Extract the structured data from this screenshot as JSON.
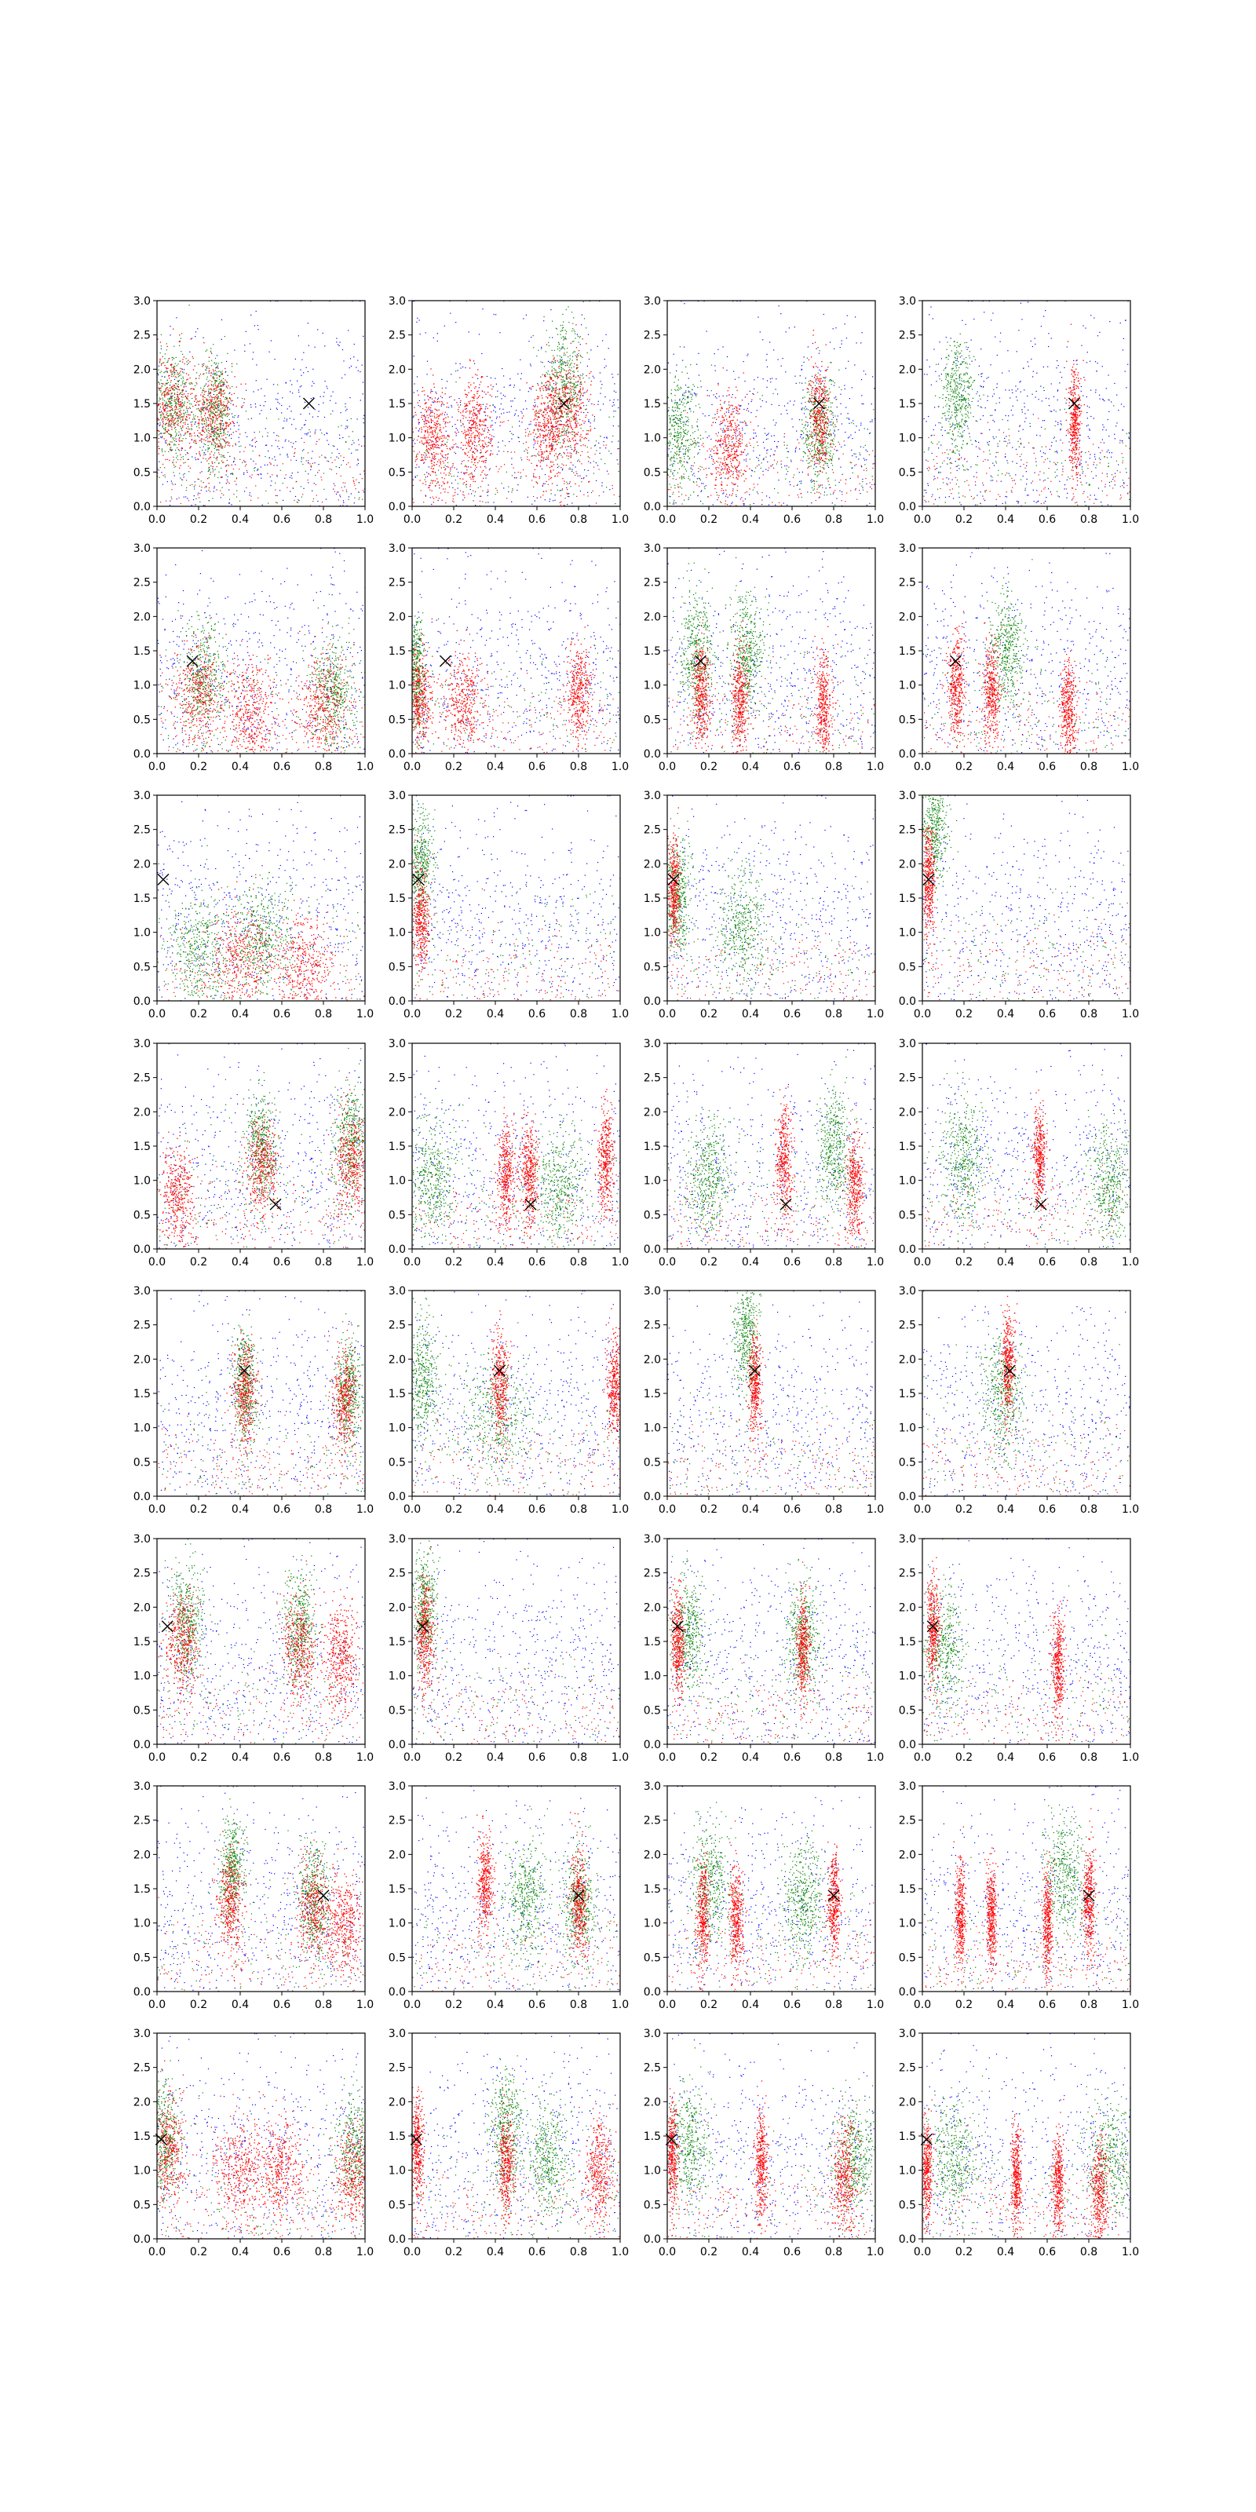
{
  "figure": {
    "grid": "8 rows x 4 columns of scatter panels"
  },
  "colors": {
    "background_points": "#0000ff",
    "red_points": "#ff0000",
    "green_points": "#008000",
    "marker": "#000000"
  },
  "chart_data": [
    {
      "type": "scatter",
      "panel": 1,
      "row": 1,
      "col": 1,
      "xlim": [
        0,
        1
      ],
      "ylim": [
        0,
        3
      ],
      "marker": {
        "x": 0.73,
        "y": 1.5
      },
      "red_clusters": [
        [
          0.07,
          1.5,
          0.06
        ],
        [
          0.28,
          1.35,
          0.05
        ]
      ],
      "green_clusters": [
        [
          0.07,
          1.5,
          0.05
        ],
        [
          0.28,
          1.4,
          0.04
        ]
      ]
    },
    {
      "type": "scatter",
      "panel": 2,
      "row": 1,
      "col": 2,
      "xlim": [
        0,
        1
      ],
      "ylim": [
        0,
        3
      ],
      "marker": {
        "x": 0.73,
        "y": 1.5
      },
      "red_clusters": [
        [
          0.1,
          1.0,
          0.04
        ],
        [
          0.3,
          1.1,
          0.04
        ],
        [
          0.65,
          1.2,
          0.04
        ],
        [
          0.75,
          1.4,
          0.05
        ]
      ],
      "green_clusters": [
        [
          0.73,
          1.8,
          0.05
        ]
      ]
    },
    {
      "type": "scatter",
      "panel": 3,
      "row": 1,
      "col": 3,
      "xlim": [
        0,
        1
      ],
      "ylim": [
        0,
        3
      ],
      "marker": {
        "x": 0.73,
        "y": 1.5
      },
      "red_clusters": [
        [
          0.73,
          1.3,
          0.025
        ],
        [
          0.3,
          0.9,
          0.04
        ]
      ],
      "green_clusters": [
        [
          0.05,
          1.1,
          0.05
        ],
        [
          0.73,
          1.1,
          0.04
        ]
      ]
    },
    {
      "type": "scatter",
      "panel": 4,
      "row": 1,
      "col": 4,
      "xlim": [
        0,
        1
      ],
      "ylim": [
        0,
        3
      ],
      "marker": {
        "x": 0.73,
        "y": 1.5
      },
      "red_clusters": [
        [
          0.73,
          1.2,
          0.015
        ]
      ],
      "green_clusters": [
        [
          0.17,
          1.6,
          0.04
        ]
      ]
    },
    {
      "type": "scatter",
      "panel": 5,
      "row": 2,
      "col": 1,
      "xlim": [
        0,
        1
      ],
      "ylim": [
        0,
        3
      ],
      "marker": {
        "x": 0.17,
        "y": 1.35
      },
      "red_clusters": [
        [
          0.2,
          0.9,
          0.06
        ],
        [
          0.8,
          0.7,
          0.06
        ],
        [
          0.45,
          0.6,
          0.06
        ]
      ],
      "green_clusters": [
        [
          0.22,
          1.1,
          0.05
        ],
        [
          0.85,
          0.9,
          0.05
        ]
      ]
    },
    {
      "type": "scatter",
      "panel": 6,
      "row": 2,
      "col": 2,
      "xlim": [
        0,
        1
      ],
      "ylim": [
        0,
        3
      ],
      "marker": {
        "x": 0.16,
        "y": 1.35
      },
      "red_clusters": [
        [
          0.03,
          0.8,
          0.03
        ],
        [
          0.25,
          0.7,
          0.05
        ],
        [
          0.8,
          0.9,
          0.03
        ]
      ],
      "green_clusters": [
        [
          0.02,
          1.2,
          0.02
        ]
      ]
    },
    {
      "type": "scatter",
      "panel": 7,
      "row": 2,
      "col": 3,
      "xlim": [
        0,
        1
      ],
      "ylim": [
        0,
        3
      ],
      "marker": {
        "x": 0.16,
        "y": 1.35
      },
      "red_clusters": [
        [
          0.16,
          0.9,
          0.02
        ],
        [
          0.35,
          0.8,
          0.02
        ],
        [
          0.75,
          0.7,
          0.02
        ]
      ],
      "green_clusters": [
        [
          0.14,
          1.5,
          0.04
        ],
        [
          0.38,
          1.5,
          0.04
        ]
      ]
    },
    {
      "type": "scatter",
      "panel": 8,
      "row": 2,
      "col": 4,
      "xlim": [
        0,
        1
      ],
      "ylim": [
        0,
        3
      ],
      "marker": {
        "x": 0.16,
        "y": 1.35
      },
      "red_clusters": [
        [
          0.16,
          1.0,
          0.02
        ],
        [
          0.33,
          0.9,
          0.02
        ],
        [
          0.7,
          0.6,
          0.02
        ]
      ],
      "green_clusters": [
        [
          0.4,
          1.5,
          0.04
        ]
      ]
    },
    {
      "type": "scatter",
      "panel": 9,
      "row": 3,
      "col": 1,
      "xlim": [
        0,
        1
      ],
      "ylim": [
        0,
        3
      ],
      "marker": {
        "x": 0.03,
        "y": 1.77
      },
      "red_clusters": [
        [
          0.4,
          0.6,
          0.07
        ],
        [
          0.7,
          0.5,
          0.07
        ]
      ],
      "green_clusters": [
        [
          0.5,
          0.9,
          0.07
        ],
        [
          0.2,
          0.7,
          0.07
        ]
      ]
    },
    {
      "type": "scatter",
      "panel": 10,
      "row": 3,
      "col": 2,
      "xlim": [
        0,
        1
      ],
      "ylim": [
        0,
        3
      ],
      "marker": {
        "x": 0.03,
        "y": 1.77
      },
      "red_clusters": [
        [
          0.04,
          1.2,
          0.02
        ]
      ],
      "green_clusters": [
        [
          0.04,
          2.0,
          0.03
        ]
      ]
    },
    {
      "type": "scatter",
      "panel": 11,
      "row": 3,
      "col": 3,
      "xlim": [
        0,
        1
      ],
      "ylim": [
        0,
        3
      ],
      "marker": {
        "x": 0.03,
        "y": 1.77
      },
      "red_clusters": [
        [
          0.03,
          1.6,
          0.015
        ]
      ],
      "green_clusters": [
        [
          0.05,
          1.5,
          0.03
        ],
        [
          0.35,
          1.1,
          0.06
        ]
      ]
    },
    {
      "type": "scatter",
      "panel": 12,
      "row": 3,
      "col": 4,
      "xlim": [
        0,
        1
      ],
      "ylim": [
        0,
        3
      ],
      "marker": {
        "x": 0.03,
        "y": 1.77
      },
      "red_clusters": [
        [
          0.03,
          1.7,
          0.015
        ]
      ],
      "green_clusters": [
        [
          0.06,
          2.5,
          0.03
        ]
      ]
    },
    {
      "type": "scatter",
      "panel": 13,
      "row": 4,
      "col": 1,
      "xlim": [
        0,
        1
      ],
      "ylim": [
        0,
        3
      ],
      "marker": {
        "x": 0.57,
        "y": 0.65
      },
      "red_clusters": [
        [
          0.5,
          1.2,
          0.04
        ],
        [
          0.93,
          1.3,
          0.04
        ],
        [
          0.1,
          0.8,
          0.04
        ]
      ],
      "green_clusters": [
        [
          0.5,
          1.5,
          0.04
        ],
        [
          0.93,
          1.6,
          0.04
        ]
      ]
    },
    {
      "type": "scatter",
      "panel": 14,
      "row": 4,
      "col": 2,
      "xlim": [
        0,
        1
      ],
      "ylim": [
        0,
        3
      ],
      "marker": {
        "x": 0.57,
        "y": 0.65
      },
      "red_clusters": [
        [
          0.45,
          1.1,
          0.02
        ],
        [
          0.56,
          1.1,
          0.02
        ],
        [
          0.93,
          1.3,
          0.02
        ]
      ],
      "green_clusters": [
        [
          0.1,
          1.0,
          0.06
        ],
        [
          0.7,
          0.9,
          0.06
        ]
      ]
    },
    {
      "type": "scatter",
      "panel": 15,
      "row": 4,
      "col": 3,
      "xlim": [
        0,
        1
      ],
      "ylim": [
        0,
        3
      ],
      "marker": {
        "x": 0.57,
        "y": 0.65
      },
      "red_clusters": [
        [
          0.56,
          1.3,
          0.02
        ],
        [
          0.9,
          0.9,
          0.02
        ]
      ],
      "green_clusters": [
        [
          0.8,
          1.5,
          0.04
        ],
        [
          0.2,
          1.1,
          0.05
        ]
      ]
    },
    {
      "type": "scatter",
      "panel": 16,
      "row": 4,
      "col": 4,
      "xlim": [
        0,
        1
      ],
      "ylim": [
        0,
        3
      ],
      "marker": {
        "x": 0.57,
        "y": 0.65
      },
      "red_clusters": [
        [
          0.56,
          1.3,
          0.015
        ]
      ],
      "green_clusters": [
        [
          0.2,
          1.3,
          0.05
        ],
        [
          0.9,
          0.9,
          0.05
        ]
      ]
    },
    {
      "type": "scatter",
      "panel": 17,
      "row": 5,
      "col": 1,
      "xlim": [
        0,
        1
      ],
      "ylim": [
        0,
        3
      ],
      "marker": {
        "x": 0.42,
        "y": 1.83
      },
      "red_clusters": [
        [
          0.42,
          1.5,
          0.03
        ],
        [
          0.9,
          1.4,
          0.03
        ]
      ],
      "green_clusters": [
        [
          0.42,
          1.6,
          0.03
        ],
        [
          0.92,
          1.5,
          0.03
        ]
      ]
    },
    {
      "type": "scatter",
      "panel": 18,
      "row": 5,
      "col": 2,
      "xlim": [
        0,
        1
      ],
      "ylim": [
        0,
        3
      ],
      "marker": {
        "x": 0.42,
        "y": 1.83
      },
      "red_clusters": [
        [
          0.42,
          1.6,
          0.02
        ],
        [
          0.97,
          1.6,
          0.02
        ]
      ],
      "green_clusters": [
        [
          0.05,
          1.7,
          0.04
        ],
        [
          0.4,
          1.2,
          0.08
        ]
      ]
    },
    {
      "type": "scatter",
      "panel": 19,
      "row": 5,
      "col": 3,
      "xlim": [
        0,
        1
      ],
      "ylim": [
        0,
        3
      ],
      "marker": {
        "x": 0.42,
        "y": 1.83
      },
      "red_clusters": [
        [
          0.42,
          1.6,
          0.015
        ]
      ],
      "green_clusters": [
        [
          0.38,
          2.3,
          0.03
        ]
      ]
    },
    {
      "type": "scatter",
      "panel": 20,
      "row": 5,
      "col": 4,
      "xlim": [
        0,
        1
      ],
      "ylim": [
        0,
        3
      ],
      "marker": {
        "x": 0.42,
        "y": 1.83
      },
      "red_clusters": [
        [
          0.41,
          1.9,
          0.015
        ]
      ],
      "green_clusters": [
        [
          0.38,
          1.5,
          0.05
        ]
      ]
    },
    {
      "type": "scatter",
      "panel": 21,
      "row": 6,
      "col": 1,
      "xlim": [
        0,
        1
      ],
      "ylim": [
        0,
        3
      ],
      "marker": {
        "x": 0.05,
        "y": 1.72
      },
      "red_clusters": [
        [
          0.12,
          1.5,
          0.04
        ],
        [
          0.68,
          1.4,
          0.04
        ],
        [
          0.88,
          1.3,
          0.04
        ]
      ],
      "green_clusters": [
        [
          0.14,
          1.8,
          0.04
        ],
        [
          0.68,
          1.7,
          0.04
        ]
      ]
    },
    {
      "type": "scatter",
      "panel": 22,
      "row": 6,
      "col": 2,
      "xlim": [
        0,
        1
      ],
      "ylim": [
        0,
        3
      ],
      "marker": {
        "x": 0.05,
        "y": 1.72
      },
      "red_clusters": [
        [
          0.06,
          1.6,
          0.02
        ]
      ],
      "green_clusters": [
        [
          0.06,
          2.0,
          0.03
        ]
      ]
    },
    {
      "type": "scatter",
      "panel": 23,
      "row": 6,
      "col": 3,
      "xlim": [
        0,
        1
      ],
      "ylim": [
        0,
        3
      ],
      "marker": {
        "x": 0.05,
        "y": 1.72
      },
      "red_clusters": [
        [
          0.05,
          1.5,
          0.015
        ],
        [
          0.65,
          1.4,
          0.015
        ]
      ],
      "green_clusters": [
        [
          0.1,
          1.6,
          0.04
        ],
        [
          0.65,
          1.6,
          0.04
        ]
      ]
    },
    {
      "type": "scatter",
      "panel": 24,
      "row": 6,
      "col": 4,
      "xlim": [
        0,
        1
      ],
      "ylim": [
        0,
        3
      ],
      "marker": {
        "x": 0.05,
        "y": 1.72
      },
      "red_clusters": [
        [
          0.05,
          1.7,
          0.015
        ],
        [
          0.65,
          1.2,
          0.015
        ]
      ],
      "green_clusters": [
        [
          0.1,
          1.4,
          0.05
        ]
      ]
    },
    {
      "type": "scatter",
      "panel": 25,
      "row": 7,
      "col": 1,
      "xlim": [
        0,
        1
      ],
      "ylim": [
        0,
        3
      ],
      "marker": {
        "x": 0.8,
        "y": 1.4
      },
      "red_clusters": [
        [
          0.35,
          1.3,
          0.03
        ],
        [
          0.75,
          1.2,
          0.04
        ],
        [
          0.9,
          1.0,
          0.04
        ]
      ],
      "green_clusters": [
        [
          0.36,
          1.8,
          0.03
        ],
        [
          0.75,
          1.4,
          0.04
        ]
      ]
    },
    {
      "type": "scatter",
      "panel": 26,
      "row": 7,
      "col": 2,
      "xlim": [
        0,
        1
      ],
      "ylim": [
        0,
        3
      ],
      "marker": {
        "x": 0.8,
        "y": 1.4
      },
      "red_clusters": [
        [
          0.35,
          1.6,
          0.02
        ],
        [
          0.8,
          1.3,
          0.02
        ]
      ],
      "green_clusters": [
        [
          0.55,
          1.4,
          0.05
        ],
        [
          0.8,
          1.3,
          0.04
        ]
      ]
    },
    {
      "type": "scatter",
      "panel": 27,
      "row": 7,
      "col": 3,
      "xlim": [
        0,
        1
      ],
      "ylim": [
        0,
        3
      ],
      "marker": {
        "x": 0.8,
        "y": 1.4
      },
      "red_clusters": [
        [
          0.17,
          1.1,
          0.015
        ],
        [
          0.33,
          1.1,
          0.015
        ],
        [
          0.8,
          1.3,
          0.015
        ]
      ],
      "green_clusters": [
        [
          0.2,
          1.6,
          0.05
        ],
        [
          0.65,
          1.4,
          0.05
        ]
      ]
    },
    {
      "type": "scatter",
      "panel": 28,
      "row": 7,
      "col": 4,
      "xlim": [
        0,
        1
      ],
      "ylim": [
        0,
        3
      ],
      "marker": {
        "x": 0.8,
        "y": 1.4
      },
      "red_clusters": [
        [
          0.18,
          1.1,
          0.012
        ],
        [
          0.33,
          1.1,
          0.012
        ],
        [
          0.6,
          1.0,
          0.012
        ],
        [
          0.8,
          1.3,
          0.015
        ]
      ],
      "green_clusters": [
        [
          0.68,
          1.7,
          0.05
        ]
      ]
    },
    {
      "type": "scatter",
      "panel": 29,
      "row": 8,
      "col": 1,
      "xlim": [
        0,
        1
      ],
      "ylim": [
        0,
        3
      ],
      "marker": {
        "x": 0.02,
        "y": 1.45
      },
      "red_clusters": [
        [
          0.05,
          1.3,
          0.04
        ],
        [
          0.4,
          1.0,
          0.06
        ],
        [
          0.6,
          1.0,
          0.06
        ],
        [
          0.95,
          1.0,
          0.05
        ]
      ],
      "green_clusters": [
        [
          0.03,
          1.5,
          0.04
        ],
        [
          0.95,
          1.3,
          0.05
        ]
      ]
    },
    {
      "type": "scatter",
      "panel": 30,
      "row": 8,
      "col": 2,
      "xlim": [
        0,
        1
      ],
      "ylim": [
        0,
        3
      ],
      "marker": {
        "x": 0.02,
        "y": 1.45
      },
      "red_clusters": [
        [
          0.02,
          1.3,
          0.015
        ],
        [
          0.45,
          1.1,
          0.02
        ],
        [
          0.9,
          1.0,
          0.03
        ]
      ],
      "green_clusters": [
        [
          0.45,
          1.6,
          0.04
        ],
        [
          0.65,
          1.2,
          0.05
        ]
      ]
    },
    {
      "type": "scatter",
      "panel": 31,
      "row": 8,
      "col": 3,
      "xlim": [
        0,
        1
      ],
      "ylim": [
        0,
        3
      ],
      "marker": {
        "x": 0.02,
        "y": 1.45
      },
      "red_clusters": [
        [
          0.02,
          1.2,
          0.015
        ],
        [
          0.45,
          1.1,
          0.015
        ],
        [
          0.85,
          0.9,
          0.03
        ]
      ],
      "green_clusters": [
        [
          0.1,
          1.4,
          0.05
        ],
        [
          0.9,
          1.2,
          0.05
        ]
      ]
    },
    {
      "type": "scatter",
      "panel": 32,
      "row": 8,
      "col": 4,
      "xlim": [
        0,
        1
      ],
      "ylim": [
        0,
        3
      ],
      "marker": {
        "x": 0.02,
        "y": 1.45
      },
      "red_clusters": [
        [
          0.02,
          1.0,
          0.012
        ],
        [
          0.45,
          0.9,
          0.012
        ],
        [
          0.65,
          0.8,
          0.015
        ],
        [
          0.85,
          0.7,
          0.02
        ]
      ],
      "green_clusters": [
        [
          0.15,
          1.2,
          0.06
        ],
        [
          0.9,
          1.2,
          0.06
        ]
      ]
    }
  ]
}
